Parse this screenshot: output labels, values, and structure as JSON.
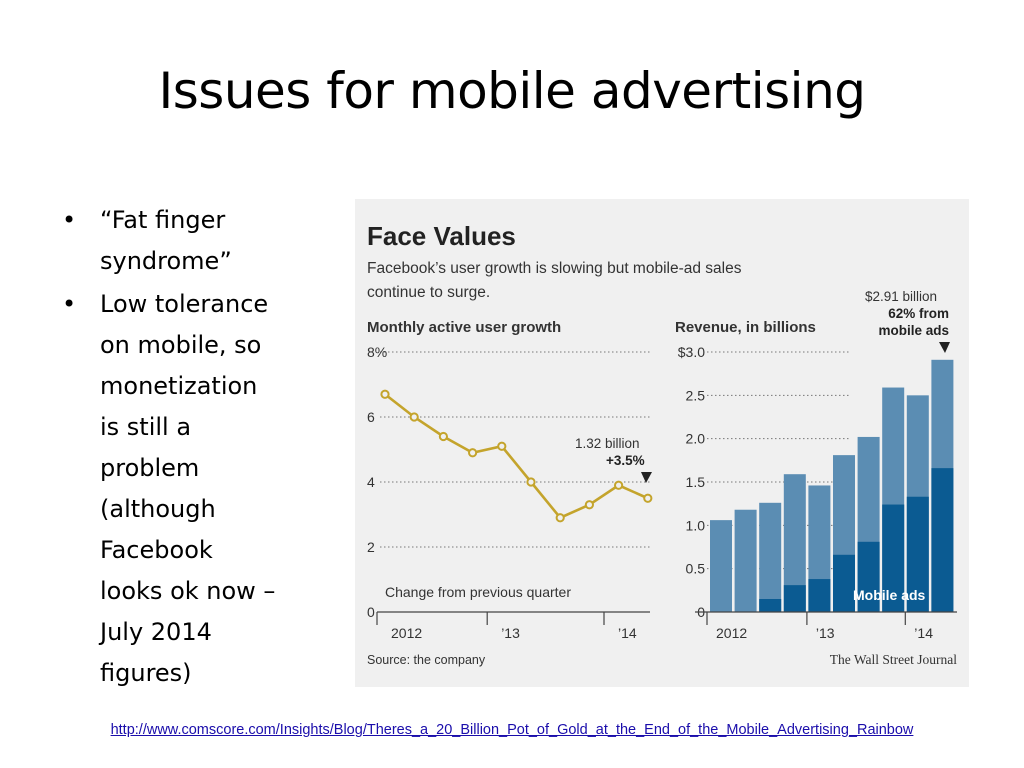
{
  "slide": {
    "title": "Issues for mobile advertising",
    "bullets": [
      [
        "“Fat finger",
        "syndrome”"
      ],
      [
        "Low tolerance",
        "on mobile, so",
        "monetization",
        "is still a",
        "problem",
        "(although",
        "Facebook",
        "looks ok now –",
        "July 2014",
        "figures)"
      ]
    ],
    "bullet_glyph": "•",
    "link": "http://www.comscore.com/Insights/Blog/Theres_a_20_Billion_Pot_of_Gold_at_the_End_of_the_Mobile_Advertising_Rainbow",
    "link_color": "#1a0dab"
  },
  "figure": {
    "headline": "Face Values",
    "dek_lines": [
      "Facebook’s user growth is slowing but mobile-ad sales",
      "continue to surge."
    ],
    "source": "Source: the company",
    "credit": "The Wall Street Journal",
    "background": "#f0f0f0"
  },
  "chart_data": [
    {
      "type": "line",
      "title": "Monthly active user growth",
      "subtitle": "Change from previous quarter",
      "y_ticks": [
        "8%",
        "6",
        "4",
        "2",
        "0"
      ],
      "ylim": [
        0,
        8
      ],
      "x_tick_labels": [
        "2012",
        "’13",
        "’14"
      ],
      "values": [
        6.7,
        6.0,
        5.4,
        4.9,
        5.1,
        4.0,
        2.9,
        3.3,
        3.9,
        3.5
      ],
      "annotation": {
        "line1": "1.32 billion",
        "line2": "+3.5%"
      },
      "line_color": "#c4a42c",
      "grid": "dotted"
    },
    {
      "type": "bar",
      "title": "Revenue, in billions",
      "y_ticks": [
        "$3.0",
        "2.5",
        "2.0",
        "1.5",
        "1.0",
        "0.5",
        "0"
      ],
      "ylim": [
        0,
        3.0
      ],
      "x_tick_labels": [
        "2012",
        "’13",
        "’14"
      ],
      "series": [
        {
          "name": "Mobile ads",
          "values": [
            0.0,
            0.0,
            0.15,
            0.31,
            0.38,
            0.66,
            0.81,
            1.24,
            1.33,
            1.66
          ]
        },
        {
          "values": [
            1.06,
            1.18,
            1.26,
            1.59,
            1.46,
            1.81,
            2.02,
            2.59,
            2.5,
            2.91
          ]
        }
      ],
      "annotation": {
        "line1": "$2.91 billion",
        "line2": "62% from",
        "line3": "mobile ads"
      },
      "colors": {
        "total": "#5b8db3",
        "mobile": "#0b5b92"
      },
      "grid": "dotted"
    }
  ]
}
